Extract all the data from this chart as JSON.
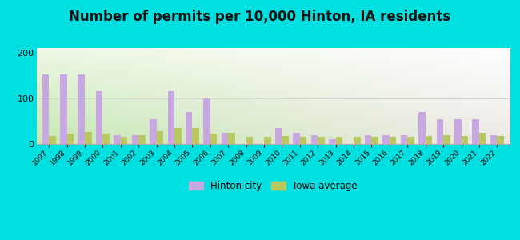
{
  "title": "Number of permits per 10,000 Hinton, IA residents",
  "years": [
    1997,
    1998,
    1999,
    2000,
    2001,
    2002,
    2003,
    2004,
    2005,
    2006,
    2007,
    2008,
    2009,
    2010,
    2011,
    2012,
    2013,
    2014,
    2015,
    2016,
    2017,
    2018,
    2019,
    2020,
    2021,
    2022
  ],
  "hinton": [
    152,
    152,
    152,
    115,
    20,
    20,
    55,
    115,
    70,
    100,
    25,
    0,
    0,
    35,
    25,
    20,
    10,
    0,
    20,
    20,
    20,
    70,
    55,
    55,
    55,
    20
  ],
  "iowa_avg": [
    18,
    22,
    27,
    22,
    15,
    20,
    28,
    35,
    35,
    22,
    25,
    15,
    15,
    18,
    15,
    15,
    15,
    15,
    15,
    15,
    15,
    18,
    20,
    18,
    25,
    18
  ],
  "hinton_color": "#c8a8e0",
  "iowa_color": "#b8c860",
  "background_outer": "#00e0e0",
  "ylim": [
    0,
    210
  ],
  "yticks": [
    0,
    100,
    200
  ],
  "title_fontsize": 12,
  "legend_hinton": "Hinton city",
  "legend_iowa": "Iowa average"
}
